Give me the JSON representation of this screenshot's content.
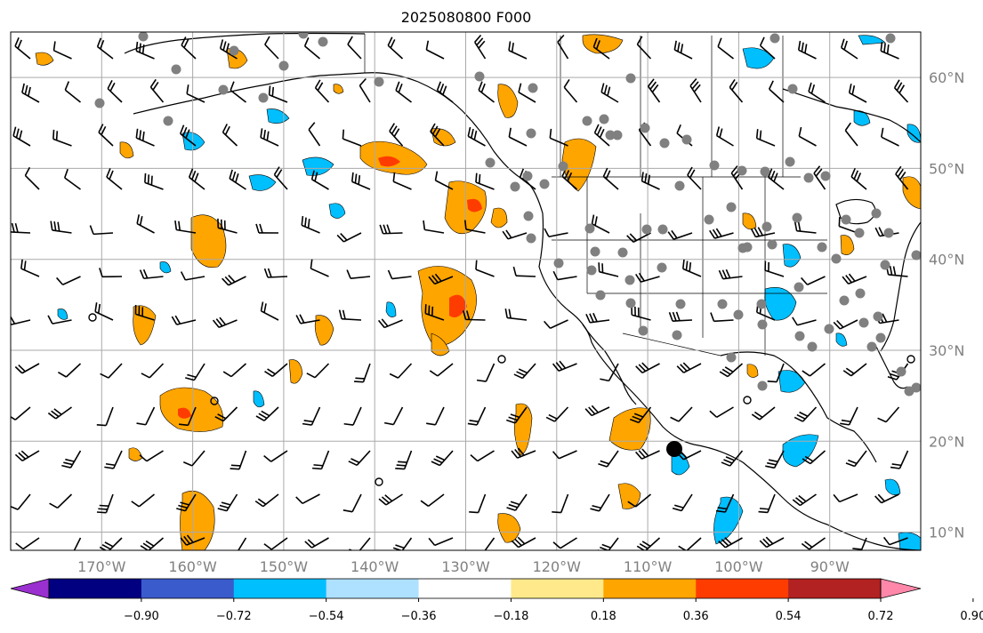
{
  "title": "2025080800 F000",
  "map": {
    "lon_range": [
      -180,
      -80
    ],
    "lat_range": [
      8,
      65
    ],
    "lon_ticks": [
      "170°W",
      "160°W",
      "150°W",
      "140°W",
      "130°W",
      "120°W",
      "110°W",
      "100°W",
      "90°W"
    ],
    "lat_ticks": [
      "10°N",
      "20°N",
      "30°N",
      "40°N",
      "50°N",
      "60°N"
    ],
    "grid": true
  },
  "colorbar": {
    "tick_labels": [
      "−0.90",
      "−0.72",
      "−0.54",
      "−0.36",
      "−0.18",
      "0.18",
      "0.36",
      "0.54",
      "0.72",
      "0.90"
    ],
    "colors": [
      "#9b30d0",
      "#000080",
      "#3a5bcc",
      "#00bfff",
      "#aee0ff",
      "#ffffff",
      "#ffe98a",
      "#ffa500",
      "#ff3c00",
      "#b22222",
      "#ff88aa"
    ],
    "extend": "both"
  }
}
